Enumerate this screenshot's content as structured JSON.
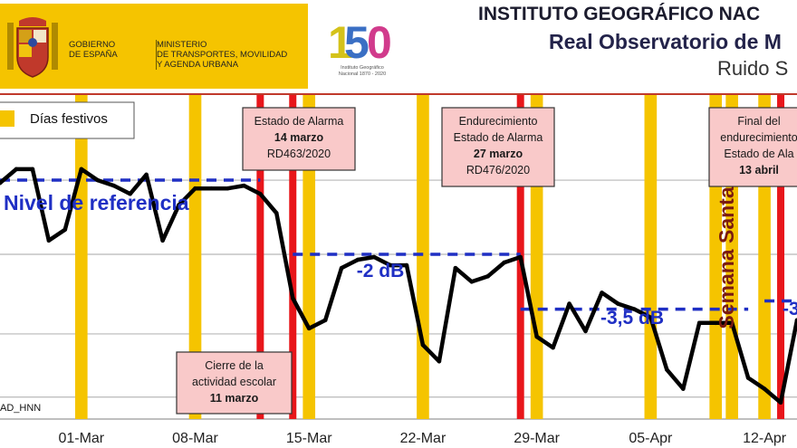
{
  "header": {
    "gov_name": "GOBIERNO\nDE ESPAÑA",
    "ministry_name": "MINISTERIO\nDE TRANSPORTES, MOVILIDAD\nY AGENDA URBANA",
    "anniversary_number": "150",
    "anniversary_caption": "Instituto Geográfico\nNacional 1870 - 2020",
    "title_line1": "INSTITUTO GEOGRÁFICO NAC",
    "title_line2": "Real Observatorio de M",
    "title_line3": "Ruido S",
    "colors": {
      "gov_yellow": "#f5c400",
      "title_dark": "#1c1c2e"
    }
  },
  "chart_data": {
    "type": "line",
    "x_domain": [
      "2020-02-25",
      "2020-04-14"
    ],
    "ylim": [
      0,
      100
    ],
    "y_gridlines": [
      79,
      52,
      23,
      0
    ],
    "xticks": [
      {
        "date": "2020-03-01",
        "label": "01-Mar"
      },
      {
        "date": "2020-03-08",
        "label": "08-Mar"
      },
      {
        "date": "2020-03-15",
        "label": "15-Mar"
      },
      {
        "date": "2020-03-22",
        "label": "22-Mar"
      },
      {
        "date": "2020-03-29",
        "label": "29-Mar"
      },
      {
        "date": "2020-04-05",
        "label": "05-Apr"
      },
      {
        "date": "2020-04-12",
        "label": "12-Apr"
      }
    ],
    "holidays": [
      "2020-03-01",
      "2020-03-08",
      "2020-03-15",
      "2020-03-22",
      "2020-03-29",
      "2020-04-05",
      "2020-04-09",
      "2020-04-10",
      "2020-04-12"
    ],
    "legend": {
      "label": "Días festivos",
      "color": "#f5c400",
      "position": "top-left"
    },
    "event_lines": [
      "2020-03-12",
      "2020-03-14",
      "2020-03-28",
      "2020-04-13"
    ],
    "annotations": [
      {
        "lines": [
          "Estado de Alarma",
          "14 marzo",
          "RD463/2020"
        ],
        "bold_index": 1,
        "placement": "top",
        "date": "2020-03-14"
      },
      {
        "lines": [
          "Endurecimiento",
          "Estado de Alarma",
          "27 marzo",
          "RD476/2020"
        ],
        "bold_index": 2,
        "placement": "top",
        "date": "2020-03-28"
      },
      {
        "lines": [
          "Final del",
          "endurecimiento",
          "Estado de Ala",
          "13 abril"
        ],
        "bold_index": 3,
        "placement": "top",
        "date": "2020-04-13"
      },
      {
        "lines": [
          "Cierre de la",
          "actividad escolar",
          "11 marzo"
        ],
        "bold_index": 2,
        "placement": "bottom",
        "date": "2020-03-12"
      }
    ],
    "reference_levels": [
      {
        "label": "Nivel de referencia",
        "value": 79,
        "from": "2020-02-25",
        "to": "2020-03-12"
      },
      {
        "label": "-2 dB",
        "value": 52,
        "from": "2020-03-14",
        "to": "2020-03-28"
      },
      {
        "label": "-3,5 dB",
        "value": 32,
        "from": "2020-03-28",
        "to": "2020-04-11"
      },
      {
        "label": "-3",
        "value": 35,
        "from": "2020-04-12",
        "to": "2020-04-14"
      }
    ],
    "vertical_label": "Semana Santa",
    "station_label": "AD_HNN",
    "series": [
      {
        "color": "#000000",
        "points": [
          [
            "2020-02-25",
            78
          ],
          [
            "2020-02-26",
            83
          ],
          [
            "2020-02-27",
            83
          ],
          [
            "2020-02-28",
            57
          ],
          [
            "2020-02-29",
            61
          ],
          [
            "2020-03-01",
            83
          ],
          [
            "2020-03-02",
            79
          ],
          [
            "2020-03-03",
            77
          ],
          [
            "2020-03-04",
            74
          ],
          [
            "2020-03-05",
            81
          ],
          [
            "2020-03-06",
            57
          ],
          [
            "2020-03-07",
            70
          ],
          [
            "2020-03-08",
            76
          ],
          [
            "2020-03-09",
            76
          ],
          [
            "2020-03-10",
            76
          ],
          [
            "2020-03-11",
            77
          ],
          [
            "2020-03-12",
            74
          ],
          [
            "2020-03-13",
            67
          ],
          [
            "2020-03-14",
            36
          ],
          [
            "2020-03-15",
            25
          ],
          [
            "2020-03-16",
            28
          ],
          [
            "2020-03-17",
            47
          ],
          [
            "2020-03-18",
            50
          ],
          [
            "2020-03-19",
            51
          ],
          [
            "2020-03-20",
            48
          ],
          [
            "2020-03-21",
            48
          ],
          [
            "2020-03-22",
            19
          ],
          [
            "2020-03-23",
            13
          ],
          [
            "2020-03-24",
            47
          ],
          [
            "2020-03-25",
            42
          ],
          [
            "2020-03-26",
            44
          ],
          [
            "2020-03-27",
            49
          ],
          [
            "2020-03-28",
            51
          ],
          [
            "2020-03-29",
            22
          ],
          [
            "2020-03-30",
            18
          ],
          [
            "2020-03-31",
            34
          ],
          [
            "2020-04-01",
            24
          ],
          [
            "2020-04-02",
            38
          ],
          [
            "2020-04-03",
            34
          ],
          [
            "2020-04-04",
            32
          ],
          [
            "2020-04-05",
            29
          ],
          [
            "2020-04-06",
            10
          ],
          [
            "2020-04-07",
            3
          ],
          [
            "2020-04-08",
            27
          ],
          [
            "2020-04-09",
            27
          ],
          [
            "2020-04-10",
            27
          ],
          [
            "2020-04-11",
            7
          ],
          [
            "2020-04-12",
            3
          ],
          [
            "2020-04-13",
            -2
          ],
          [
            "2020-04-14",
            28
          ]
        ]
      }
    ]
  }
}
